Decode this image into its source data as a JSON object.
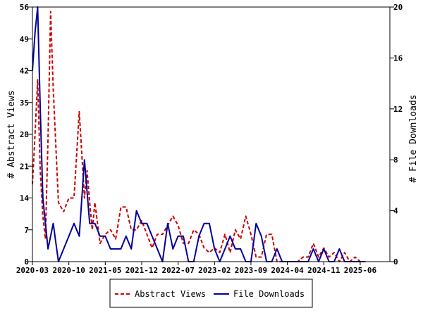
{
  "chart_data": {
    "type": "line",
    "y_left_label": "# Abstract Views",
    "y_right_label": "# File Downloads",
    "y_left_ticks": [
      "0",
      "7",
      "14",
      "21",
      "28",
      "35",
      "42",
      "49",
      "56"
    ],
    "y_right_ticks": [
      "0",
      "4",
      "8",
      "12",
      "16",
      "20"
    ],
    "x_tick_labels": [
      "2020-03",
      "2020-10",
      "2021-05",
      "2021-12",
      "2022-07",
      "2023-02",
      "2023-09",
      "2024-04",
      "2024-11",
      "2025-06"
    ],
    "ylim_left": [
      0,
      56
    ],
    "ylim_right": [
      0,
      20
    ],
    "xlim": [
      0,
      68.7
    ],
    "grid": false,
    "legend_position": "bottom",
    "series": [
      {
        "name": "Abstract Views",
        "axis": "left",
        "color": "#cc0000",
        "style": "dashed",
        "points": [
          [
            0,
            17
          ],
          [
            0.5,
            28
          ],
          [
            1,
            40
          ],
          [
            1.5,
            20
          ],
          [
            2,
            10
          ],
          [
            2.5,
            5
          ],
          [
            3,
            27
          ],
          [
            3.5,
            55
          ],
          [
            4,
            38
          ],
          [
            5,
            13
          ],
          [
            6,
            11
          ],
          [
            7,
            14
          ],
          [
            8,
            14
          ],
          [
            9,
            33
          ],
          [
            10,
            14
          ],
          [
            10.5,
            20
          ],
          [
            11,
            13
          ],
          [
            11.5,
            7
          ],
          [
            12,
            13
          ],
          [
            13,
            4
          ],
          [
            14,
            6
          ],
          [
            15,
            7
          ],
          [
            16,
            5
          ],
          [
            17,
            12
          ],
          [
            18,
            12
          ],
          [
            19,
            7
          ],
          [
            20,
            7
          ],
          [
            21,
            9
          ],
          [
            22,
            6
          ],
          [
            23,
            3
          ],
          [
            24,
            6
          ],
          [
            25,
            6
          ],
          [
            26,
            8
          ],
          [
            27,
            10
          ],
          [
            28,
            8
          ],
          [
            29,
            4
          ],
          [
            30,
            4
          ],
          [
            31,
            7
          ],
          [
            32,
            6
          ],
          [
            33,
            3
          ],
          [
            34,
            2
          ],
          [
            35,
            3
          ],
          [
            36,
            2
          ],
          [
            37,
            6
          ],
          [
            38,
            2
          ],
          [
            39,
            7
          ],
          [
            40,
            5
          ],
          [
            41,
            10
          ],
          [
            42,
            6
          ],
          [
            43,
            1
          ],
          [
            44,
            1
          ],
          [
            45,
            6
          ],
          [
            46,
            6
          ],
          [
            47,
            0
          ],
          [
            48,
            0
          ],
          [
            49,
            0
          ],
          [
            50,
            0
          ],
          [
            51,
            0
          ],
          [
            52,
            1
          ],
          [
            53,
            1
          ],
          [
            54,
            4
          ],
          [
            55,
            1
          ],
          [
            56,
            3
          ],
          [
            57,
            1
          ],
          [
            58,
            2
          ],
          [
            59,
            0
          ],
          [
            60,
            2
          ],
          [
            61,
            0
          ],
          [
            62,
            1
          ],
          [
            63,
            0
          ],
          [
            64,
            0
          ]
        ]
      },
      {
        "name": "File Downloads",
        "axis": "right",
        "color": "#00009c",
        "style": "solid",
        "points": [
          [
            0,
            15
          ],
          [
            0.5,
            18
          ],
          [
            1,
            20
          ],
          [
            1.5,
            12
          ],
          [
            2,
            5
          ],
          [
            3,
            1
          ],
          [
            4,
            3
          ],
          [
            5,
            0
          ],
          [
            6,
            1
          ],
          [
            7,
            2
          ],
          [
            8,
            3
          ],
          [
            9,
            2
          ],
          [
            10,
            8
          ],
          [
            11,
            3
          ],
          [
            12,
            3
          ],
          [
            13,
            2
          ],
          [
            14,
            2
          ],
          [
            15,
            1
          ],
          [
            16,
            1
          ],
          [
            17,
            1
          ],
          [
            18,
            2
          ],
          [
            19,
            1
          ],
          [
            20,
            4
          ],
          [
            21,
            3
          ],
          [
            22,
            3
          ],
          [
            23,
            2
          ],
          [
            24,
            1
          ],
          [
            25,
            0
          ],
          [
            26,
            3
          ],
          [
            27,
            1
          ],
          [
            28,
            2
          ],
          [
            29,
            2
          ],
          [
            30,
            0
          ],
          [
            31,
            0
          ],
          [
            32,
            2
          ],
          [
            33,
            3
          ],
          [
            34,
            3
          ],
          [
            35,
            1
          ],
          [
            36,
            0
          ],
          [
            37,
            1
          ],
          [
            38,
            2
          ],
          [
            39,
            1
          ],
          [
            40,
            1
          ],
          [
            41,
            0
          ],
          [
            42,
            0
          ],
          [
            43,
            3
          ],
          [
            44,
            2
          ],
          [
            45,
            0
          ],
          [
            46,
            0
          ],
          [
            47,
            1
          ],
          [
            48,
            0
          ],
          [
            49,
            0
          ],
          [
            50,
            0
          ],
          [
            51,
            0
          ],
          [
            52,
            0
          ],
          [
            53,
            0
          ],
          [
            54,
            1
          ],
          [
            55,
            0
          ],
          [
            56,
            1
          ],
          [
            57,
            0
          ],
          [
            58,
            0
          ],
          [
            59,
            1
          ],
          [
            60,
            0
          ],
          [
            61,
            0
          ],
          [
            62,
            0
          ],
          [
            63,
            0
          ],
          [
            64,
            0
          ]
        ]
      }
    ]
  }
}
